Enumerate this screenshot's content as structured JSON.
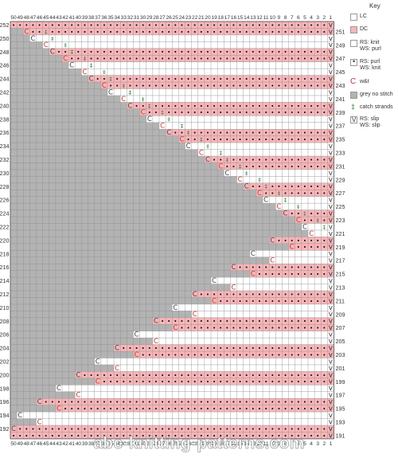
{
  "chart_data": {
    "type": "knitting-chart",
    "columns": 50,
    "row_range": [
      191,
      252
    ],
    "symbols": {
      "purl": "•",
      "catch": "‡",
      "wrap": "C",
      "slip": "V"
    },
    "colors": {
      "lc": "#ffffff",
      "dc": "#f7b5b8",
      "grey": "#b3b3b3",
      "grid": "#8c8c8c",
      "catch": "#2e7d32"
    }
  },
  "key": {
    "title": "Key",
    "items": [
      {
        "id": "lc",
        "label": "LC"
      },
      {
        "id": "dc",
        "label": "DC"
      },
      {
        "id": "knit",
        "label": "RS: knit\nWS: purl"
      },
      {
        "id": "purl",
        "label": "RS: purl\nWS: knit"
      },
      {
        "id": "wt",
        "label": "w&t"
      },
      {
        "id": "grey",
        "label": "grey no stitch"
      },
      {
        "id": "catch",
        "label": "catch strands"
      },
      {
        "id": "slip",
        "label": "RS: slip\nWS: slip"
      }
    ]
  },
  "watermark": "abc-knitting-patterns.com"
}
